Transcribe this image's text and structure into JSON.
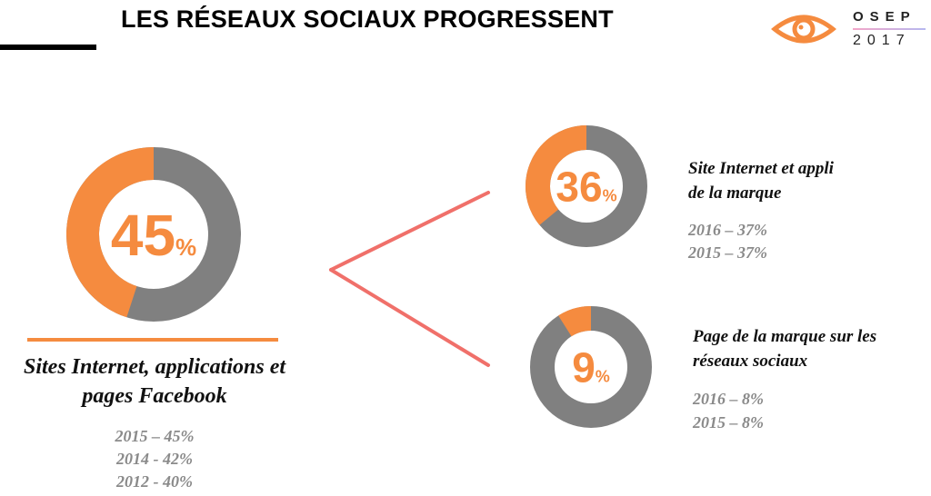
{
  "header": {
    "title": "LES RÉSEAUX SOCIAUX PROGRESSENT",
    "logo_name": "OSEP",
    "logo_year": "2017",
    "logo_icon": "eye-icon"
  },
  "colors": {
    "accent": "#f58b3f",
    "track": "#808080",
    "connector": "#f0706a",
    "history_text": "#8a8a8a"
  },
  "chart_data": [
    {
      "type": "pie",
      "variant": "donut",
      "value": 45,
      "value_label": "45",
      "unit": "%",
      "label_lines": [
        "Sites Internet, applications et",
        "pages Facebook"
      ],
      "history": [
        "2015 – 45%",
        "2014 - 42%",
        "2012 - 40%"
      ]
    },
    {
      "type": "pie",
      "variant": "donut",
      "value": 36,
      "value_label": "36",
      "unit": "%",
      "label_lines": [
        "Site Internet et appli",
        "de la marque"
      ],
      "history": [
        "2016 – 37%",
        "2015 – 37%"
      ]
    },
    {
      "type": "pie",
      "variant": "donut",
      "value": 9,
      "value_label": "9",
      "unit": "%",
      "label_lines": [
        "Page de la marque sur les",
        "réseaux sociaux"
      ],
      "history": [
        "2016 – 8%",
        "2015 – 8%"
      ]
    }
  ]
}
